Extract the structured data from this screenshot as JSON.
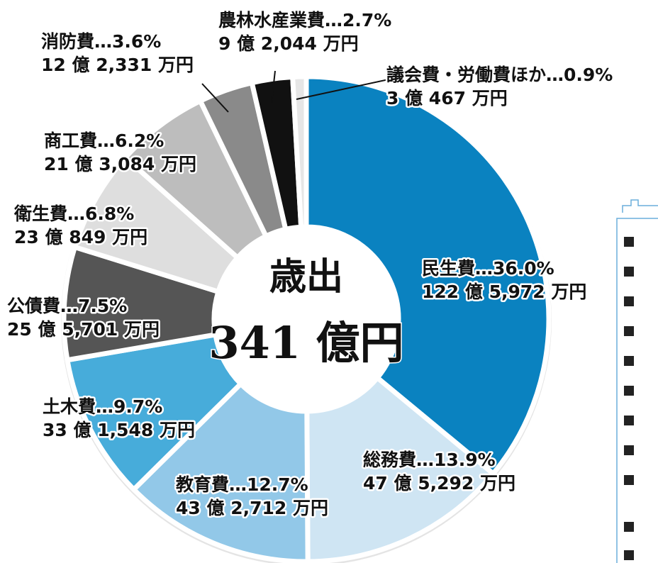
{
  "chart_data": {
    "type": "donut",
    "title": "歳出",
    "subtitle": "341 億円",
    "values": [
      36.0,
      13.9,
      12.7,
      9.7,
      7.5,
      6.8,
      6.2,
      3.6,
      2.7,
      0.9
    ],
    "value_labels": [
      "民生費…36.0%",
      "総務費…13.9%",
      "教育費…12.7%",
      "土木費…9.7%",
      "公債費…7.5%",
      "衛生費…6.8%",
      "商工費…6.2%",
      "消防費…3.6%",
      "農林水産業費…2.7%",
      "議会費・労働費ほか…0.9%"
    ],
    "amount_labels": [
      "122 億 5,972 万円",
      "47 億 5,292 万円",
      "43 億 2,712 万円",
      "33 億 1,548 万円",
      "25 億 5,701 万円",
      "23 億 849 万円",
      "21 億 3,084 万円",
      "12 億 2,331 万円",
      "9 億 2,044 万円",
      "3 億 467 万円"
    ],
    "colors": [
      "#0a82c0",
      "#cfe5f3",
      "#92c8e8",
      "#47acda",
      "#555555",
      "#dedede",
      "#bdbdbd",
      "#8a8a8a",
      "#111111",
      "#e6e6e6"
    ]
  }
}
